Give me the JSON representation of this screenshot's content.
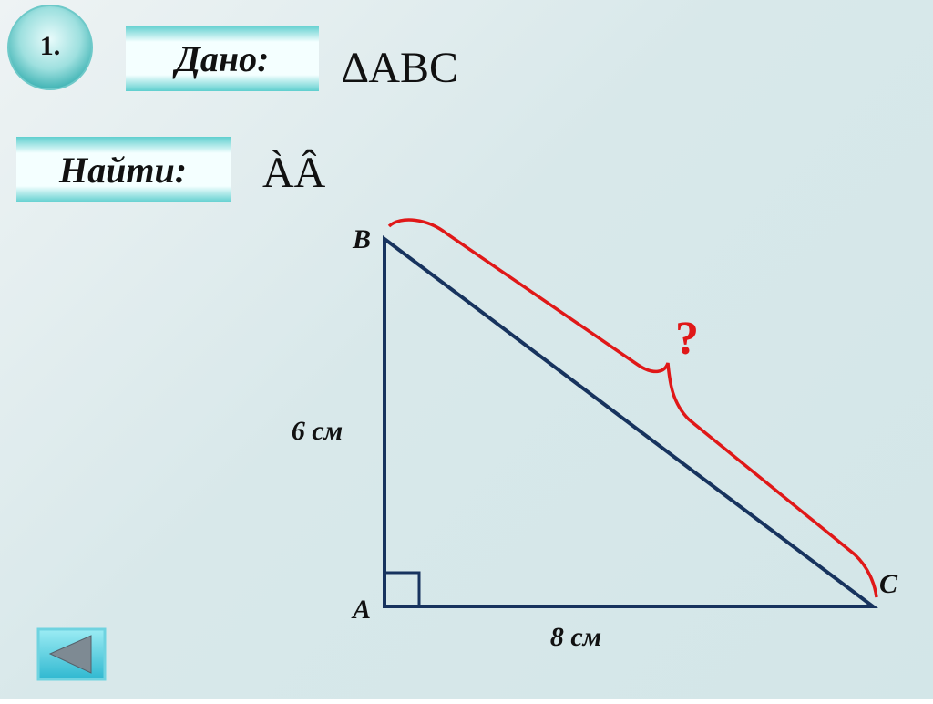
{
  "number": "1.",
  "given": {
    "label": "Дано:",
    "value": "∆ABC"
  },
  "find": {
    "label": "Найти:",
    "value": "ÀÂ"
  },
  "figure": {
    "vertex_a": "A",
    "vertex_b": "B",
    "vertex_c": "C",
    "side_ab": "6 см",
    "side_ac": "8 см",
    "unknown": "?"
  }
}
